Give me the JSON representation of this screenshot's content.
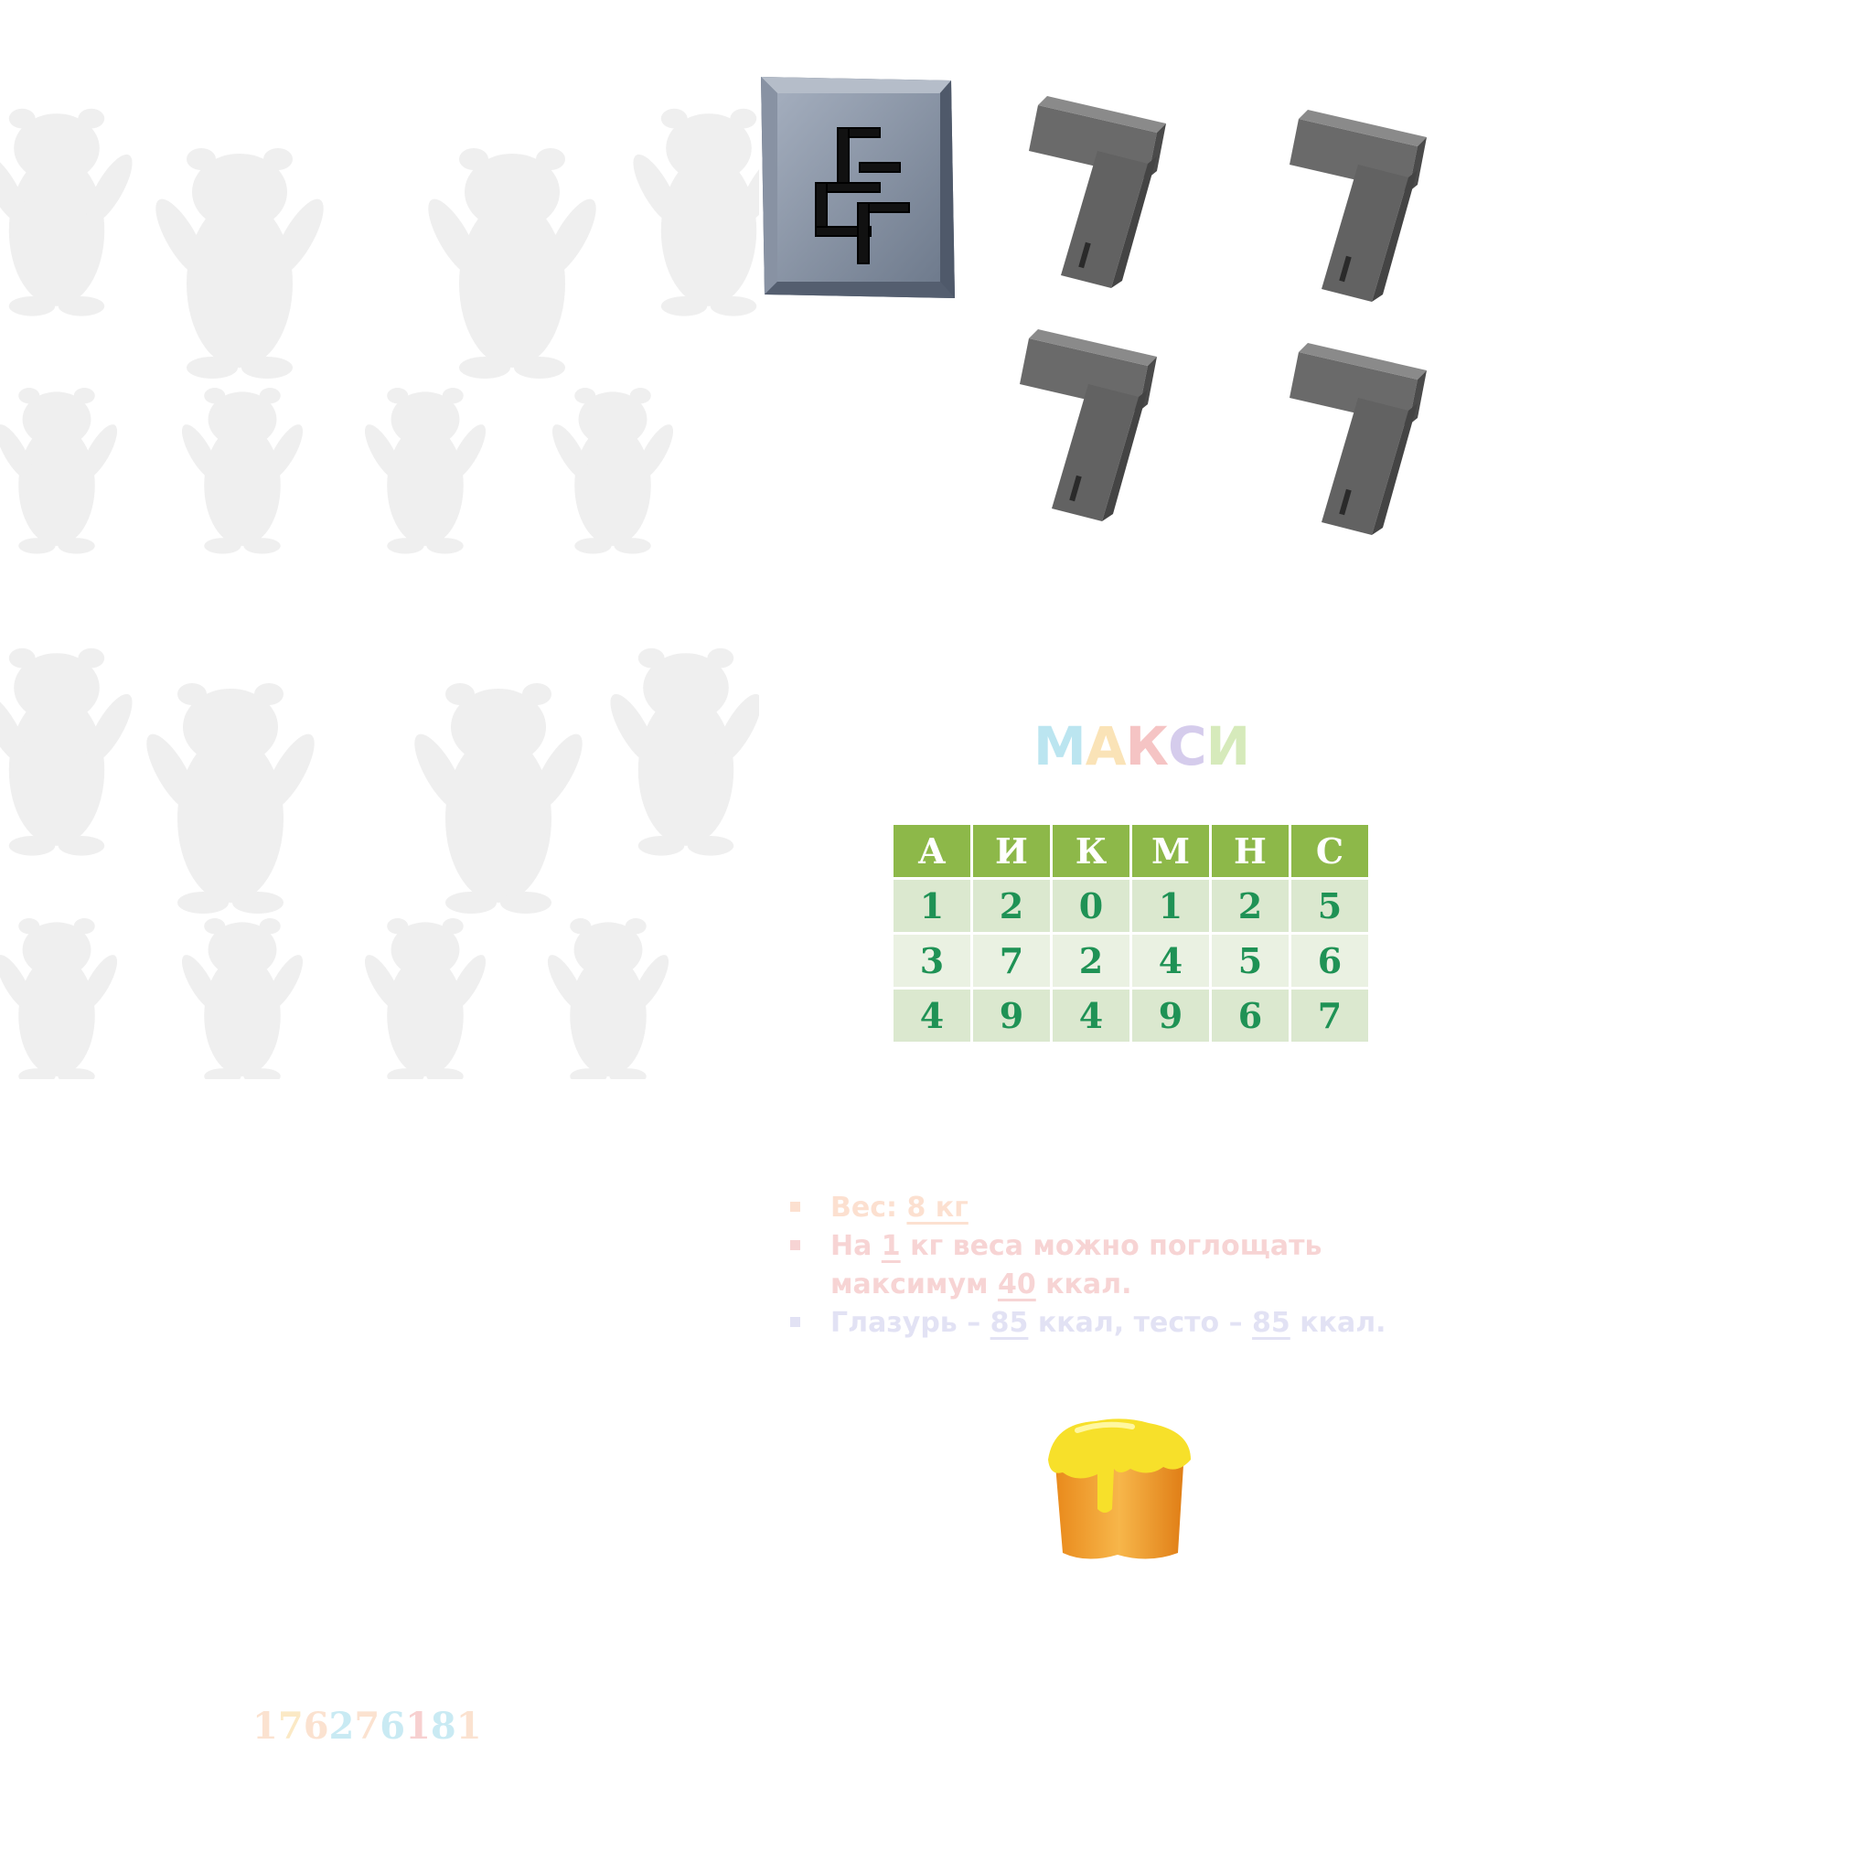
{
  "stone_tile": {
    "glyph": "ꜰ-rune",
    "icon": "rune-icon"
  },
  "title": {
    "text": "МАКСИ",
    "letters": [
      {
        "ch": "М",
        "color": "#3fb6d6"
      },
      {
        "ch": "А",
        "color": "#f2b233"
      },
      {
        "ch": "К",
        "color": "#e35a5a"
      },
      {
        "ch": "С",
        "color": "#8a6fc9"
      },
      {
        "ch": "И",
        "color": "#8cc63e"
      }
    ]
  },
  "table": {
    "headers": [
      "А",
      "И",
      "К",
      "М",
      "Н",
      "С"
    ],
    "rows": [
      [
        "1",
        "2",
        "0",
        "1",
        "2",
        "5"
      ],
      [
        "3",
        "7",
        "2",
        "4",
        "5",
        "6"
      ],
      [
        "4",
        "9",
        "4",
        "9",
        "6",
        "7"
      ]
    ]
  },
  "facts": {
    "weight_label": "Вес: ",
    "weight_value": "8 кг",
    "limit_prefix": "На ",
    "limit_value1": "1",
    "limit_mid": " кг веса можно поглощать максимум ",
    "limit_value2": "40",
    "limit_unit": " ккал.",
    "icing_label": "Глазурь – ",
    "icing_value": "85",
    "icing_mid": " ккал, тесто – ",
    "dough_value": "85",
    "dough_unit": " ккал."
  },
  "digits": {
    "text": "176276181",
    "colors": [
      "#f29a5a",
      "#f2b233",
      "#f29a5a",
      "#3fb6d6",
      "#f29a5a",
      "#3fb6d6",
      "#e35a5a",
      "#3fb6d6",
      "#f29a5a"
    ]
  },
  "colors": {
    "header_green": "#8db849",
    "digit_green": "#1f9255",
    "stone": "#8a96a8",
    "key_gray": "#5f5f5f",
    "icing": "#f7e02a",
    "cake": "#f2a02e"
  }
}
